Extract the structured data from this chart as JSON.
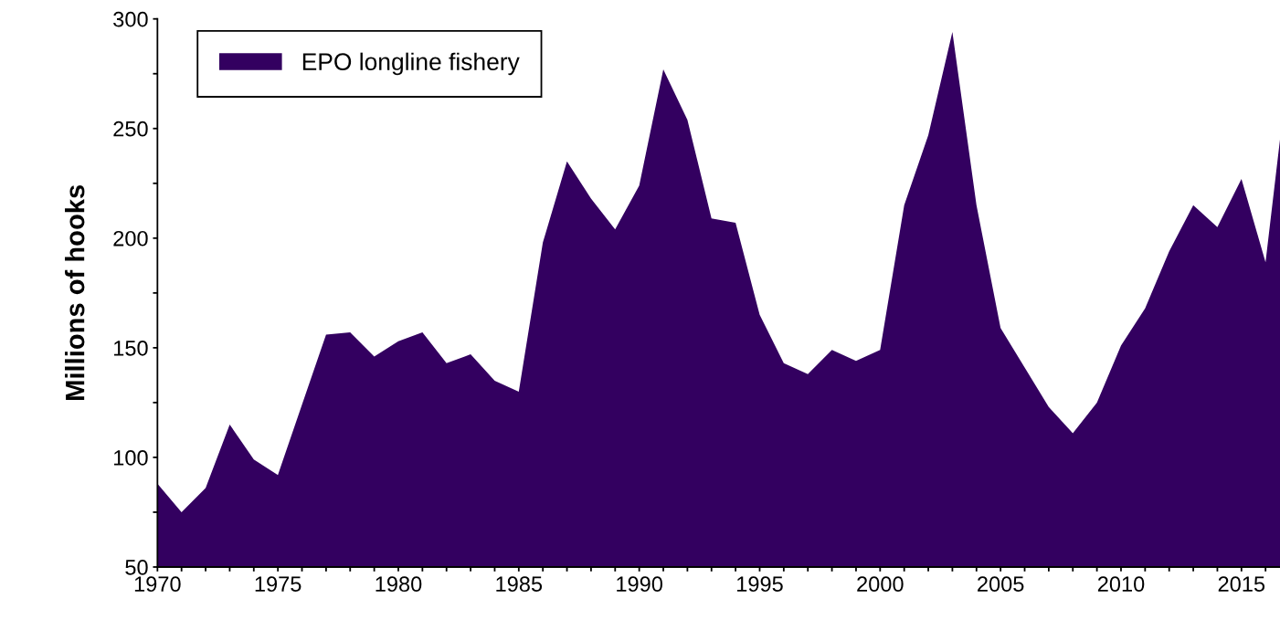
{
  "chart_data": {
    "type": "area",
    "ylabel": "Millions of hooks",
    "x": [
      1970,
      1971,
      1972,
      1973,
      1974,
      1975,
      1976,
      1977,
      1978,
      1979,
      1980,
      1981,
      1982,
      1983,
      1984,
      1985,
      1986,
      1987,
      1988,
      1989,
      1990,
      1991,
      1992,
      1993,
      1994,
      1995,
      1996,
      1997,
      1998,
      1999,
      2000,
      2001,
      2002,
      2003,
      2004,
      2005,
      2006,
      2007,
      2008,
      2009,
      2010,
      2011,
      2012,
      2013,
      2014,
      2015,
      2016,
      2016.6
    ],
    "series": [
      {
        "name": "EPO longline fishery",
        "color": "#330060",
        "values": [
          88,
          75,
          86,
          115,
          99,
          92,
          124,
          156,
          157,
          146,
          153,
          157,
          143,
          147,
          135,
          130,
          198,
          235,
          218,
          204,
          224,
          277,
          254,
          209,
          207,
          165,
          143,
          138,
          149,
          144,
          149,
          215,
          247,
          294,
          215,
          159,
          141,
          123,
          111,
          125,
          151,
          168,
          194,
          215,
          205,
          227,
          189,
          245
        ]
      }
    ],
    "xlim": [
      1970,
      2016.6
    ],
    "ylim": [
      50,
      300
    ],
    "xticks": [
      1970,
      {
        "value": 1971,
        "label": null
      },
      {
        "value": 1972,
        "label": null
      },
      {
        "value": 1973,
        "label": null
      },
      {
        "value": 1974,
        "label": null
      },
      1975,
      {
        "value": 1976,
        "label": null
      },
      {
        "value": 1977,
        "label": null
      },
      {
        "value": 1978,
        "label": null
      },
      {
        "value": 1979,
        "label": null
      },
      1980,
      {
        "value": 1981,
        "label": null
      },
      {
        "value": 1982,
        "label": null
      },
      {
        "value": 1983,
        "label": null
      },
      {
        "value": 1984,
        "label": null
      },
      1985,
      {
        "value": 1986,
        "label": null
      },
      {
        "value": 1987,
        "label": null
      },
      {
        "value": 1988,
        "label": null
      },
      {
        "value": 1989,
        "label": null
      },
      1990,
      {
        "value": 1991,
        "label": null
      },
      {
        "value": 1992,
        "label": null
      },
      {
        "value": 1993,
        "label": null
      },
      {
        "value": 1994,
        "label": null
      },
      1995,
      {
        "value": 1996,
        "label": null
      },
      {
        "value": 1997,
        "label": null
      },
      {
        "value": 1998,
        "label": null
      },
      {
        "value": 1999,
        "label": null
      },
      2000,
      {
        "value": 2001,
        "label": null
      },
      {
        "value": 2002,
        "label": null
      },
      {
        "value": 2003,
        "label": null
      },
      {
        "value": 2004,
        "label": null
      },
      2005,
      {
        "value": 2006,
        "label": null
      },
      {
        "value": 2007,
        "label": null
      },
      {
        "value": 2008,
        "label": null
      },
      {
        "value": 2009,
        "label": null
      },
      2010,
      {
        "value": 2011,
        "label": null
      },
      {
        "value": 2012,
        "label": null
      },
      {
        "value": 2013,
        "label": null
      },
      {
        "value": 2014,
        "label": null
      },
      2015,
      {
        "value": 2016,
        "label": null
      }
    ],
    "yticks": [
      50,
      {
        "value": 75,
        "label": null
      },
      100,
      {
        "value": 125,
        "label": null
      },
      150,
      {
        "value": 175,
        "label": null
      },
      200,
      {
        "value": 225,
        "label": null
      },
      250,
      {
        "value": 275,
        "label": null
      },
      300
    ],
    "grid": false,
    "legend": "top left"
  }
}
